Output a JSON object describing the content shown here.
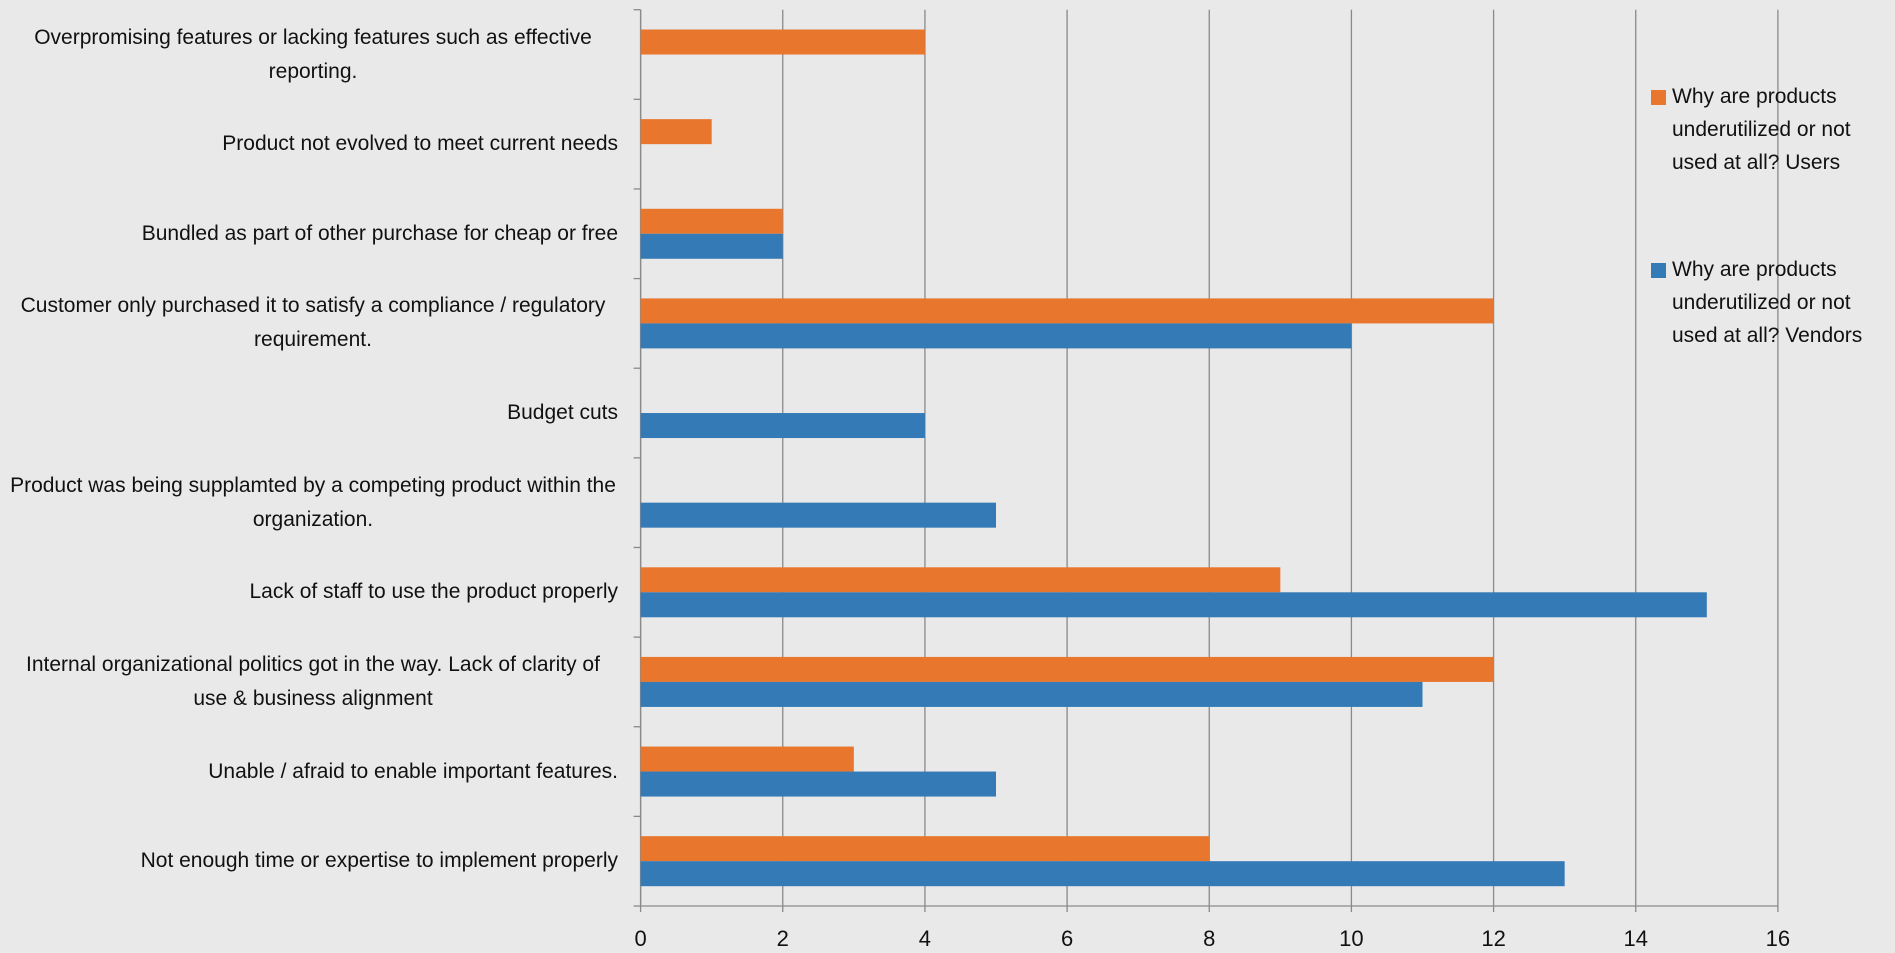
{
  "chart_data": {
    "type": "bar",
    "orientation": "horizontal",
    "categories": [
      "Overpromising features or lacking features such as effective reporting.",
      "Product not evolved to meet current needs",
      "Bundled as part of other purchase for cheap or free",
      "Customer only purchased it to satisfy a compliance / regulatory requirement.",
      "Budget cuts",
      "Product was being supplamted by a competing product within the organization.",
      "Lack of staff to use the product properly",
      "Internal organizational politics got in the way. Lack of clarity of use & business alignment",
      "Unable / afraid to enable important features.",
      "Not enough time or expertise to implement properly"
    ],
    "series": [
      {
        "name": "Why are products underutilized or not used at all? Users",
        "color": "#e8762c",
        "values": [
          4,
          1,
          2,
          12,
          null,
          null,
          9,
          12,
          3,
          8
        ]
      },
      {
        "name": "Why are products underutilized or not used at all? Vendors",
        "color": "#337ab7",
        "values": [
          null,
          null,
          2,
          10,
          4,
          5,
          15,
          11,
          5,
          13
        ]
      }
    ],
    "xlim": [
      0,
      16
    ],
    "xticks": [
      0,
      2,
      4,
      6,
      8,
      10,
      12,
      14,
      16
    ],
    "grid": true,
    "legend": "right"
  }
}
